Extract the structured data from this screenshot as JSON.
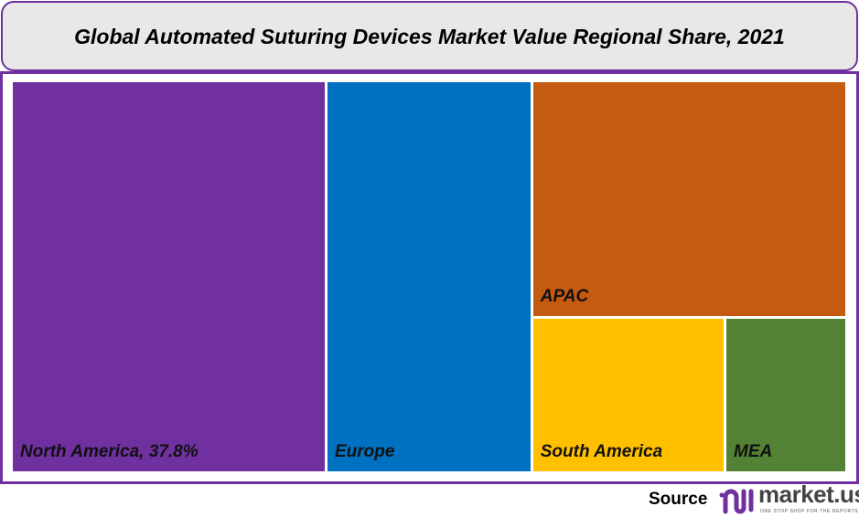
{
  "chart_data": {
    "type": "treemap",
    "title": "Global Automated Suturing Devices Market Value Regional Share, 2021",
    "unit": "%",
    "items": [
      {
        "name": "North America",
        "label": "North America, 37.8%",
        "value": 37.8,
        "color": "#7030a0"
      },
      {
        "name": "Europe",
        "label": "Europe",
        "value": 24.7,
        "color": "#0070c0"
      },
      {
        "name": "APAC",
        "label": "APAC",
        "value": 22.8,
        "color": "#c55a11"
      },
      {
        "name": "South America",
        "label": "South America",
        "value": 9.1,
        "color": "#ffc000"
      },
      {
        "name": "MEA",
        "label": "MEA",
        "value": 5.6,
        "color": "#548235"
      }
    ]
  },
  "footer": {
    "source_label": "Source",
    "brand": "market.us",
    "tagline": "ONE STOP SHOP FOR THE REPORTS"
  },
  "colors": {
    "accent": "#7030a0",
    "title_bg": "#e9e7e7"
  }
}
